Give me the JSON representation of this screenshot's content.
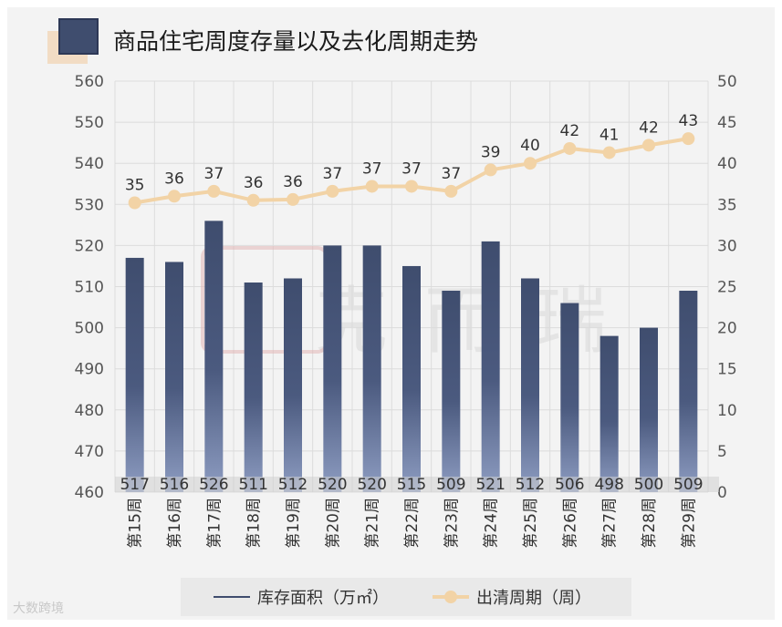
{
  "title": "商品住宅周度存量以及去化周期走势",
  "watermark": "克而瑞",
  "logo_text": "大数跨境",
  "chart_data": {
    "type": "bar+line",
    "title": "商品住宅周度存量以及去化周期走势",
    "categories": [
      "第15周",
      "第16周",
      "第17周",
      "第18周",
      "第19周",
      "第20周",
      "第21周",
      "第22周",
      "第23周",
      "第24周",
      "第25周",
      "第26周",
      "第27周",
      "第28周",
      "第29周"
    ],
    "series": [
      {
        "name": "库存面积（万㎡）",
        "type": "bar",
        "axis": "left",
        "values": [
          517,
          516,
          526,
          511,
          512,
          520,
          520,
          515,
          509,
          521,
          512,
          506,
          498,
          500,
          509
        ]
      },
      {
        "name": "出清周期（周）",
        "type": "line",
        "axis": "right",
        "values": [
          35,
          36,
          37,
          36,
          36,
          37,
          37,
          37,
          37,
          39,
          40,
          42,
          41,
          42,
          43
        ],
        "plot_values": [
          35.2,
          36.0,
          36.6,
          35.5,
          35.6,
          36.6,
          37.2,
          37.2,
          36.6,
          39.2,
          40.0,
          41.8,
          41.3,
          42.2,
          43.0
        ]
      }
    ],
    "left_axis": {
      "ylim": [
        460,
        560
      ],
      "ticks": [
        "460",
        "470",
        "480",
        "490",
        "500",
        "510",
        "520",
        "530",
        "540",
        "550",
        "560"
      ]
    },
    "right_axis": {
      "ylim": [
        0,
        50
      ],
      "ticks": [
        "0",
        "5",
        "10",
        "15",
        "20",
        "25",
        "30",
        "35",
        "40",
        "45",
        "50"
      ]
    },
    "legend_position": "bottom"
  },
  "legend": {
    "bar_label": "库存面积（万㎡）",
    "line_label": "出清周期（周）"
  },
  "colors": {
    "bar_top": "#3f4d6e",
    "bar_bottom": "#8e9dc2",
    "line": "#f2d3a6",
    "grid": "#dcdcdc",
    "axis_text": "#555555"
  }
}
